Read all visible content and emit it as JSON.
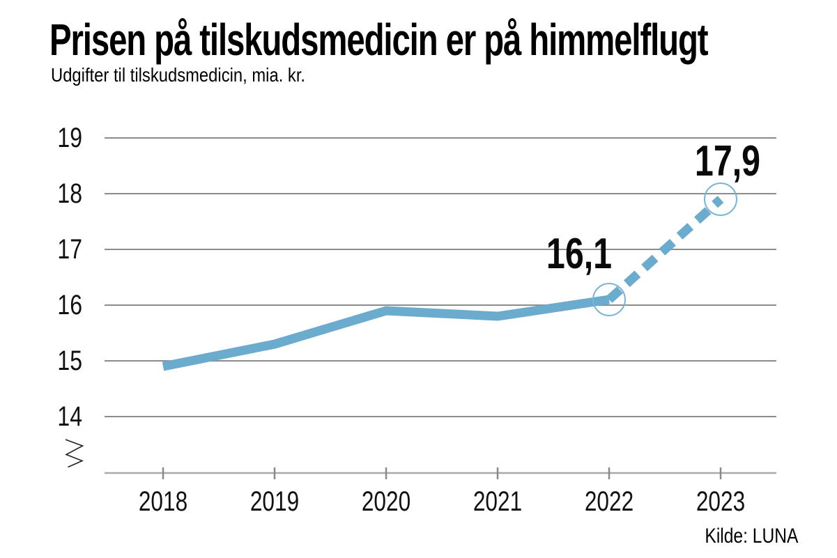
{
  "chart_data": {
    "type": "line",
    "title": "Prisen på tilskudsmedicin er på himmelflugt",
    "subtitle": "Udgifter til tilskudsmedicin, mia. kr.",
    "source": "Kilde: LUNA",
    "x": [
      2018,
      2019,
      2020,
      2021,
      2022,
      2023
    ],
    "x_labels": [
      "2018",
      "2019",
      "2020",
      "2021",
      "2022",
      "2023"
    ],
    "series": [
      {
        "name": "Udgifter til tilskudsmedicin, mia. kr.",
        "values": [
          14.9,
          15.3,
          15.9,
          15.8,
          16.1,
          17.9
        ],
        "dashed_from_x": 2022
      }
    ],
    "annotations": [
      {
        "x": 2022,
        "value": 16.1,
        "label": "16,1"
      },
      {
        "x": 2023,
        "value": 17.9,
        "label": "17,9"
      }
    ],
    "y_ticks": [
      19,
      18,
      17,
      16,
      15,
      14
    ],
    "y_tick_labels": [
      "19",
      "18",
      "17",
      "16",
      "15",
      "14"
    ],
    "ylim": [
      14,
      19
    ],
    "axis_break": true,
    "grid": "horizontal-only",
    "legend": "none",
    "line_color": "#6aabce",
    "circle_color": "#7ab5d8",
    "grid_color": "#8c8c8c",
    "axis_color": "#a9a9a9",
    "tick_color": "#8a8a8a"
  }
}
